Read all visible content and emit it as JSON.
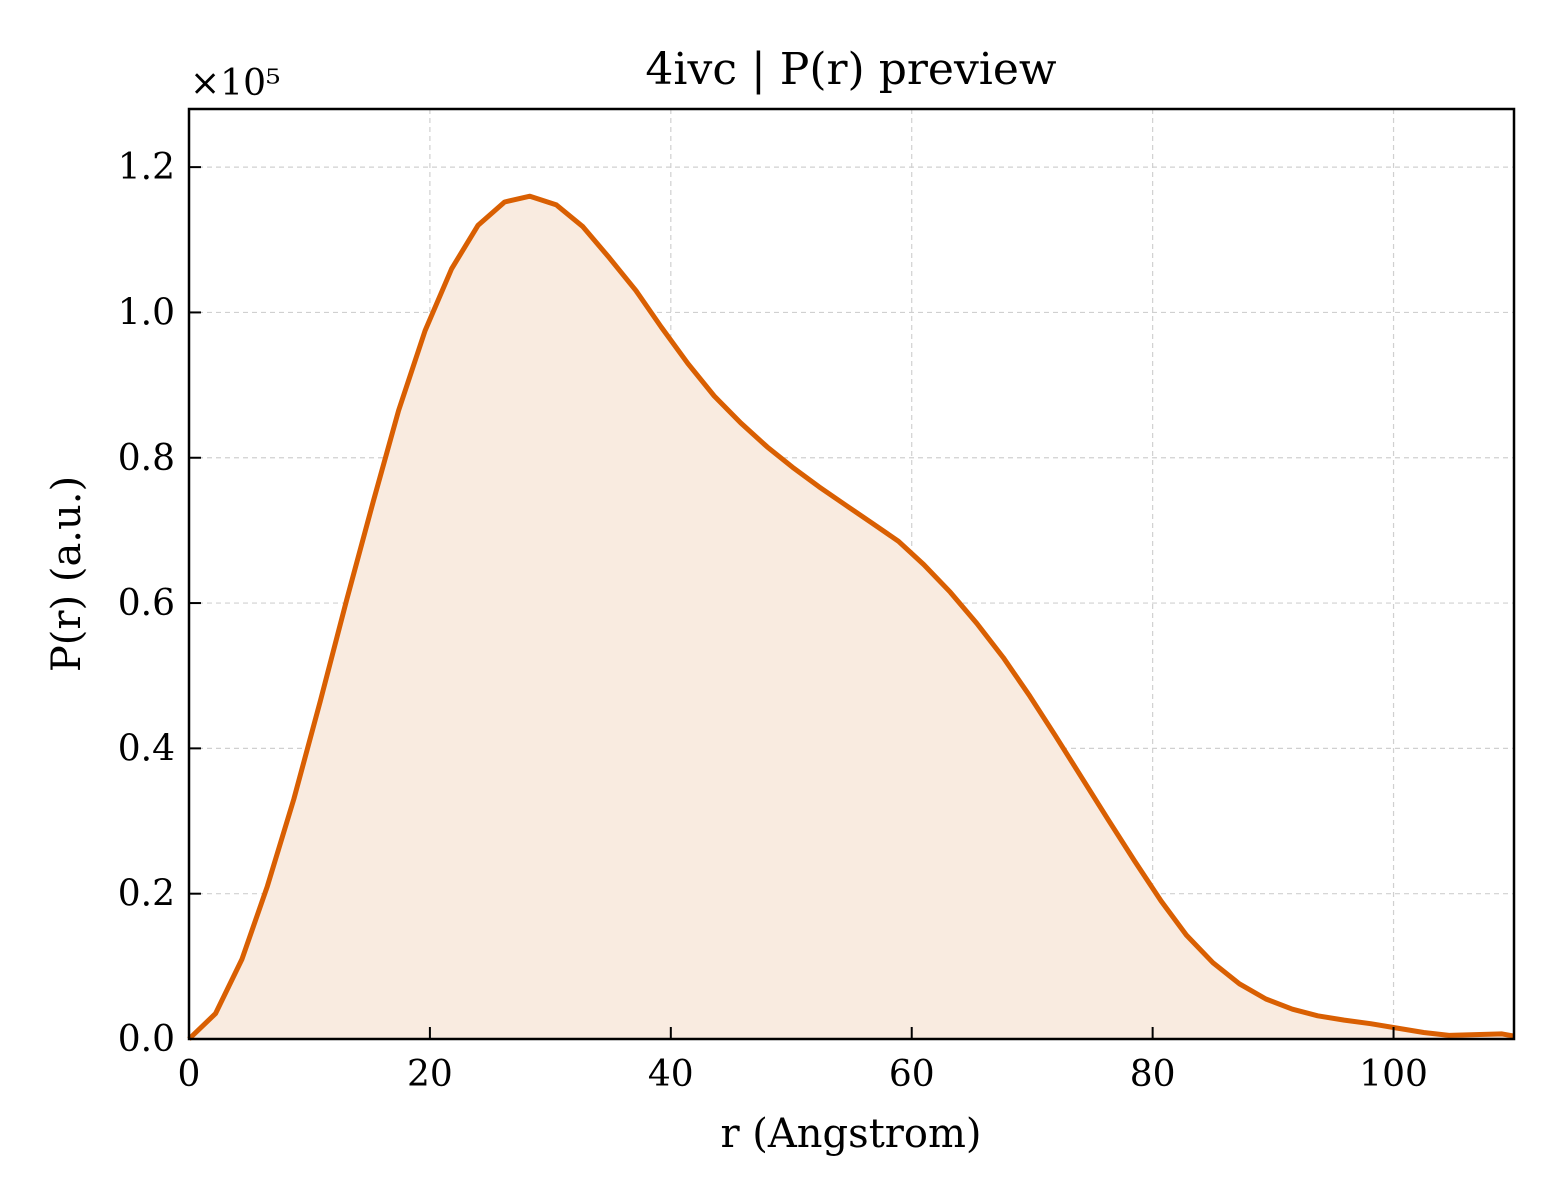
{
  "chart_data": {
    "type": "area",
    "title": "4ivc | P(r) preview",
    "xlabel": "r (Angstrom)",
    "ylabel": "P(r) (a.u.)",
    "y_multiplier_label": "×10⁵",
    "xlim": [
      0,
      110
    ],
    "ylim": [
      0,
      1.28
    ],
    "xticks": [
      0,
      20,
      40,
      60,
      80,
      100
    ],
    "xtick_labels": [
      "0",
      "20",
      "40",
      "60",
      "80",
      "100"
    ],
    "yticks": [
      0.0,
      0.2,
      0.4,
      0.6,
      0.8,
      1.0,
      1.2
    ],
    "ytick_labels": [
      "0.0",
      "0.2",
      "0.4",
      "0.6",
      "0.8",
      "1.0",
      "1.2"
    ],
    "grid": true,
    "colors": {
      "line": "#d95f02",
      "fill": "#f9ebe0"
    },
    "series": [
      {
        "x": [
          0,
          2.2,
          4.4,
          6.5,
          8.7,
          10.9,
          13.1,
          15.3,
          17.4,
          19.6,
          21.8,
          24.0,
          26.2,
          28.3,
          30.5,
          32.7,
          34.9,
          37.1,
          39.2,
          41.4,
          43.6,
          45.8,
          48.0,
          50.1,
          52.3,
          54.5,
          56.7,
          58.9,
          61.0,
          63.2,
          65.4,
          67.6,
          69.8,
          71.9,
          74.1,
          76.3,
          78.5,
          80.7,
          82.8,
          85.0,
          87.2,
          89.4,
          91.6,
          93.7,
          95.9,
          98.1,
          100.3,
          102.5,
          104.6,
          106.8,
          109.0,
          110
        ],
        "values": [
          0.0,
          0.035,
          0.11,
          0.21,
          0.33,
          0.465,
          0.605,
          0.74,
          0.865,
          0.975,
          1.06,
          1.12,
          1.152,
          1.16,
          1.148,
          1.118,
          1.075,
          1.03,
          0.98,
          0.93,
          0.885,
          0.848,
          0.815,
          0.787,
          0.76,
          0.735,
          0.71,
          0.685,
          0.653,
          0.615,
          0.572,
          0.525,
          0.472,
          0.418,
          0.36,
          0.302,
          0.245,
          0.19,
          0.143,
          0.105,
          0.076,
          0.055,
          0.041,
          0.032,
          0.026,
          0.021,
          0.015,
          0.009,
          0.005,
          0.006,
          0.007,
          0.004
        ]
      }
    ]
  }
}
